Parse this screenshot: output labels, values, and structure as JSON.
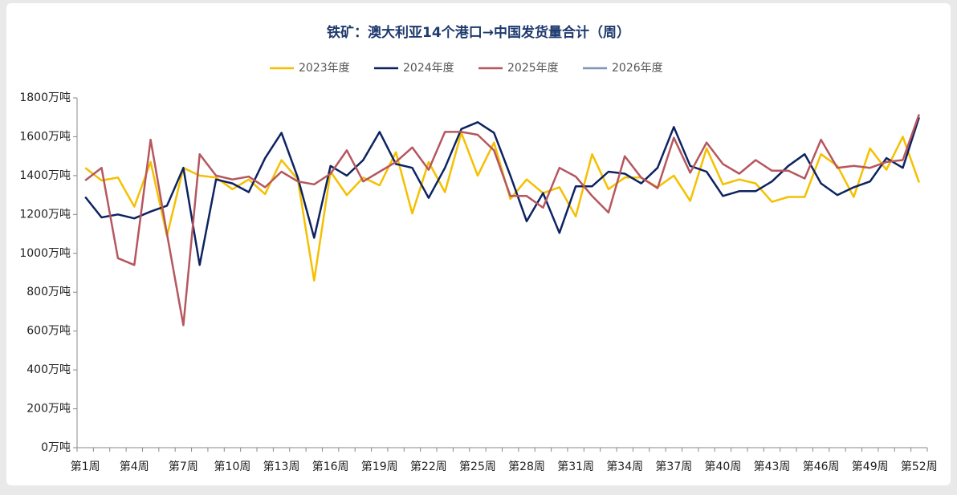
{
  "chart_data": {
    "type": "line",
    "title": "铁矿：澳大利亚14个港口→中国发货量合计（周）",
    "categories": [
      "第1周",
      null,
      null,
      "第4周",
      null,
      null,
      "第7周",
      null,
      null,
      "第10周",
      null,
      null,
      "第13周",
      null,
      null,
      "第16周",
      null,
      null,
      "第19周",
      null,
      null,
      "第22周",
      null,
      null,
      "第25周",
      null,
      null,
      "第28周",
      null,
      null,
      "第31周",
      null,
      null,
      "第34周",
      null,
      null,
      "第37周",
      null,
      null,
      "第40周",
      null,
      null,
      "第43周",
      null,
      null,
      "第46周",
      null,
      null,
      "第49周",
      null,
      null,
      "第52周"
    ],
    "series": [
      {
        "name": "2023年度",
        "color": "#f5c000",
        "values": [
          1440,
          1375,
          1390,
          1240,
          1470,
          1090,
          1440,
          1400,
          1390,
          1330,
          1380,
          1305,
          1480,
          1380,
          860,
          1420,
          1300,
          1390,
          1350,
          1520,
          1205,
          1470,
          1315,
          1620,
          1400,
          1570,
          1280,
          1380,
          1310,
          1340,
          1190,
          1510,
          1330,
          1390,
          1390,
          1340,
          1400,
          1270,
          1540,
          1355,
          1380,
          1360,
          1265,
          1290,
          1290,
          1510,
          1450,
          1290,
          1540,
          1430,
          1600,
          1365
        ]
      },
      {
        "name": "2024年度",
        "color": "#0d2361",
        "values": [
          1290,
          1185,
          1200,
          1180,
          1215,
          1245,
          1440,
          940,
          1380,
          1360,
          1315,
          1490,
          1620,
          1390,
          1080,
          1450,
          1400,
          1480,
          1625,
          1460,
          1440,
          1285,
          1440,
          1640,
          1675,
          1620,
          1400,
          1165,
          1310,
          1105,
          1345,
          1345,
          1420,
          1410,
          1360,
          1440,
          1650,
          1450,
          1420,
          1295,
          1320,
          1320,
          1370,
          1450,
          1510,
          1360,
          1300,
          1340,
          1370,
          1490,
          1440,
          1700
        ]
      },
      {
        "name": "2025年度",
        "color": "#b5575e",
        "values": [
          1375,
          1440,
          975,
          940,
          1585,
          1100,
          630,
          1510,
          1400,
          1380,
          1395,
          1340,
          1420,
          1370,
          1355,
          1410,
          1530,
          1370,
          1420,
          1470,
          1545,
          1430,
          1625,
          1625,
          1610,
          1530,
          1295,
          1295,
          1235,
          1440,
          1395,
          1295,
          1210,
          1500,
          1390,
          1335,
          1595,
          1415,
          1570,
          1460,
          1410,
          1480,
          1425,
          1425,
          1385,
          1585,
          1440,
          1450,
          1440,
          1470,
          1480,
          1715
        ]
      },
      {
        "name": "2026年度",
        "color": "#7f96b8",
        "values": [
          null,
          null,
          null,
          null,
          null,
          null,
          null,
          null,
          null,
          null,
          null,
          null,
          null,
          null,
          null,
          null,
          null,
          null,
          null,
          null,
          null,
          null,
          null,
          null,
          null,
          null,
          null,
          null,
          null,
          null,
          null,
          null,
          null,
          null,
          null,
          null,
          null,
          null,
          null,
          null,
          null,
          null,
          null,
          null,
          null,
          null,
          null,
          null,
          null,
          null,
          null,
          null
        ]
      }
    ],
    "ylim": [
      0,
      1800
    ],
    "yticks": [
      {
        "value": 0,
        "label": "0万吨"
      },
      {
        "value": 200,
        "label": "200万吨"
      },
      {
        "value": 400,
        "label": "400万吨"
      },
      {
        "value": 600,
        "label": "600万吨"
      },
      {
        "value": 800,
        "label": "800万吨"
      },
      {
        "value": 1000,
        "label": "1000万吨"
      },
      {
        "value": 1200,
        "label": "1200万吨"
      },
      {
        "value": 1400,
        "label": "1400万吨"
      },
      {
        "value": 1600,
        "label": "1600万吨"
      },
      {
        "value": 1800,
        "label": "1800万吨"
      }
    ],
    "legend": "top"
  }
}
